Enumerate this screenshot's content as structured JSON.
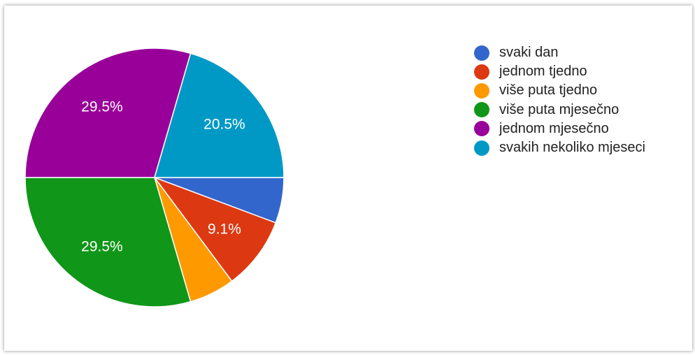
{
  "chart_data": {
    "type": "pie",
    "title": "",
    "categories": [
      "svaki dan",
      "jednom tjedno",
      "više puta tjedno",
      "više puta mjesečno",
      "jednom mjesečno",
      "svakih nekoliko mjeseci"
    ],
    "values": [
      5.7,
      9.1,
      5.7,
      29.5,
      29.5,
      20.5
    ],
    "value_unit": "%",
    "data_labels": [
      "",
      "9.1%",
      "",
      "29.5%",
      "29.5%",
      "20.5%"
    ],
    "colors": [
      "#3366cc",
      "#dc3912",
      "#ff9900",
      "#109618",
      "#990099",
      "#0099c6"
    ],
    "start_angle_deg": 90,
    "direction": "clockwise",
    "legend_position": "right"
  }
}
